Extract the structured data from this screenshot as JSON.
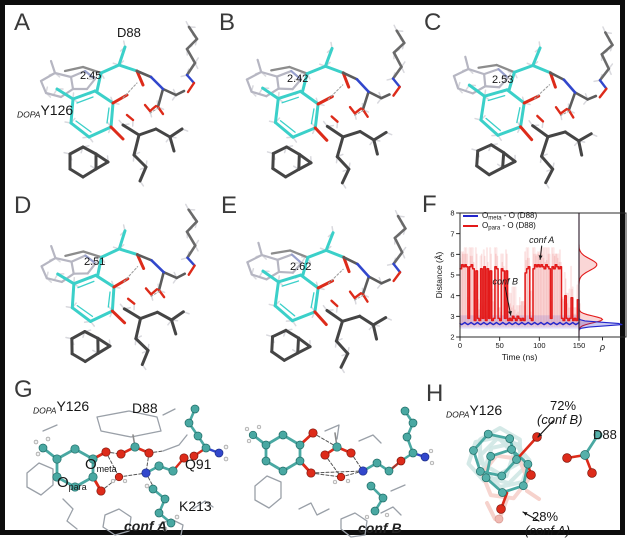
{
  "panels": {
    "A": {
      "letter": "A",
      "distance": "2.45",
      "d88": "D88",
      "dopa": "DOPA",
      "residue": "Y126"
    },
    "B": {
      "letter": "B",
      "distance": "2.42"
    },
    "C": {
      "letter": "C",
      "distance": "2.53"
    },
    "D": {
      "letter": "D",
      "distance": "2.51"
    },
    "E": {
      "letter": "E",
      "distance": "2.62"
    },
    "F": {
      "letter": "F"
    },
    "G": {
      "letter": "G",
      "dopa": "DOPA",
      "residue": "Y126",
      "d88": "D88",
      "q91": "Q91",
      "k213": "K213",
      "o_pre": "O",
      "o_meta_sub": "meta",
      "o_para_sub": "para",
      "conf_a": "conf A",
      "conf_b": "conf B"
    },
    "H": {
      "letter": "H",
      "dopa": "DOPA",
      "residue": "Y126",
      "d88": "D88",
      "pct_b": "72%",
      "pct_b_conf": "(conf B)",
      "pct_a": "28%",
      "pct_a_conf": "(conf A)"
    }
  },
  "colors": {
    "ligand_cyan": "#3bd0c9",
    "ball_teal": "#49a8a2",
    "oxygen_red": "#dd2b1a",
    "nitrogen_blue": "#3247cc",
    "carbon_gray": "#5c5c5c",
    "wire_gray": "#9aa0a8",
    "series_red": "#e31a1a",
    "series_blue": "#2326cc"
  },
  "chart_data": {
    "type": "line",
    "title": "",
    "xlabel": "Time (ns)",
    "ylabel": "Distance (Å)",
    "xlim": [
      0,
      150
    ],
    "ylim": [
      2,
      8
    ],
    "xticks": [
      0,
      50,
      100,
      150
    ],
    "yticks": [
      2,
      3,
      4,
      5,
      6,
      7,
      8
    ],
    "grid": false,
    "legend_position": "upper left",
    "series": [
      {
        "name_pre": "O",
        "name_sub": "meta",
        "name_post": " - O (D88)",
        "color": "#2326cc",
        "x": [
          0,
          2,
          4,
          6,
          8,
          10,
          12,
          14,
          16,
          18,
          20,
          22,
          24,
          26,
          28,
          30,
          32,
          34,
          36,
          38,
          40,
          42,
          44,
          46,
          48,
          50,
          52,
          54,
          56,
          58,
          60,
          62,
          64,
          66,
          68,
          70,
          72,
          74,
          76,
          78,
          80,
          82,
          84,
          86,
          88,
          90,
          92,
          94,
          96,
          98,
          100,
          102,
          104,
          106,
          108,
          110,
          112,
          114,
          116,
          118,
          120,
          122,
          124,
          126,
          128,
          130,
          132,
          134,
          136,
          138,
          140,
          142,
          144,
          146,
          148,
          150
        ],
        "values": [
          2.65,
          2.6,
          2.65,
          2.7,
          2.65,
          2.6,
          2.65,
          2.7,
          2.65,
          2.6,
          2.65,
          2.7,
          2.65,
          2.6,
          2.65,
          2.7,
          2.65,
          2.6,
          2.65,
          2.7,
          2.65,
          2.6,
          2.65,
          2.7,
          2.65,
          2.6,
          2.65,
          2.7,
          2.65,
          2.6,
          2.65,
          2.7,
          2.65,
          2.6,
          2.65,
          2.7,
          2.65,
          2.6,
          2.65,
          2.7,
          2.65,
          2.6,
          2.65,
          2.7,
          2.65,
          2.6,
          2.65,
          2.7,
          2.65,
          2.6,
          2.65,
          2.7,
          2.65,
          2.6,
          2.65,
          2.7,
          2.65,
          2.6,
          2.65,
          2.7,
          2.65,
          2.6,
          2.65,
          2.7,
          2.65,
          2.6,
          2.65,
          2.7,
          2.65,
          2.6,
          2.65,
          2.7,
          2.65,
          2.6,
          2.65,
          2.7
        ]
      },
      {
        "name_pre": "O",
        "name_sub": "para",
        "name_post": " - O (D88)",
        "color": "#e31a1a",
        "x": [
          0,
          2,
          4,
          6,
          8,
          10,
          12,
          14,
          16,
          18,
          20,
          22,
          24,
          26,
          28,
          30,
          32,
          34,
          36,
          38,
          40,
          42,
          44,
          46,
          48,
          50,
          52,
          54,
          56,
          58,
          60,
          62,
          64,
          66,
          68,
          70,
          72,
          74,
          76,
          78,
          80,
          82,
          84,
          86,
          88,
          90,
          92,
          94,
          96,
          98,
          100,
          102,
          104,
          106,
          108,
          110,
          112,
          114,
          116,
          118,
          120,
          122,
          124,
          126,
          128,
          130,
          132,
          134,
          136,
          138,
          140,
          142,
          144,
          146,
          148,
          150
        ],
        "values": [
          5.3,
          5.5,
          5.4,
          5.5,
          5.4,
          2.9,
          5.4,
          5.5,
          5.3,
          2.8,
          5.2,
          2.9,
          2.8,
          5.3,
          2.9,
          5.4,
          2.8,
          5.3,
          2.9,
          5.2,
          2.8,
          2.9,
          5.4,
          5.3,
          2.9,
          2.8,
          5.3,
          5.2,
          2.9,
          5.2,
          2.8,
          2.9,
          2.8,
          3.0,
          2.9,
          2.8,
          3.0,
          2.9,
          2.8,
          2.9,
          2.8,
          5.1,
          5.3,
          5.4,
          2.9,
          2.8,
          5.3,
          5.5,
          5.4,
          5.5,
          5.4,
          5.5,
          5.4,
          5.3,
          5.5,
          5.4,
          5.3,
          2.9,
          5.4,
          5.3,
          5.5,
          5.4,
          5.3,
          5.4,
          2.9,
          2.8,
          4.0,
          2.9,
          2.8,
          2.9,
          3.9,
          2.8,
          2.9,
          2.8,
          3.8,
          2.8
        ]
      }
    ],
    "annotations": [
      {
        "text": "conf A",
        "text_x": 103,
        "text_y": 6.55,
        "tip_x": 101,
        "tip_y": 5.75
      },
      {
        "text": "conf B",
        "text_x": 57,
        "text_y": 4.55,
        "tip_x": 64,
        "tip_y": 3.05
      }
    ],
    "marginal_density": {
      "xlabel": "ρ",
      "red_peaks": [
        {
          "center": 2.85,
          "height": 0.5,
          "sigma": 0.16
        },
        {
          "center": 5.5,
          "height": 0.38,
          "sigma": 0.28
        }
      ],
      "blue_peaks": [
        {
          "center": 2.62,
          "height": 0.95,
          "sigma": 0.08
        }
      ]
    }
  }
}
